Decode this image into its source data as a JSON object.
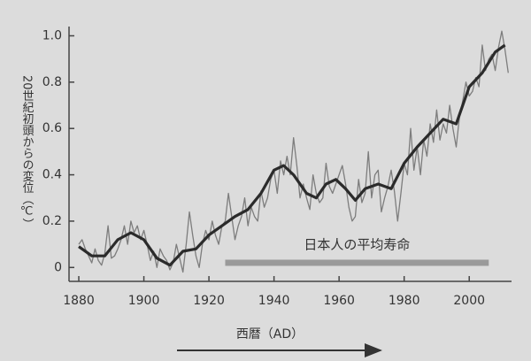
{
  "chart_data": {
    "type": "line",
    "ylabel": "20世紀初頭からの変位（℃）",
    "xlabel": "西暦（AD）",
    "xlim": [
      1877,
      2013
    ],
    "ylim": [
      -0.06,
      1.04
    ],
    "xticks": [
      1880,
      1900,
      1920,
      1940,
      1960,
      1980,
      2000
    ],
    "yticks": [
      0,
      0.2,
      0.4,
      0.6,
      0.8,
      {
        "value": 1,
        "label": "1.0"
      }
    ],
    "annotation": {
      "text": "日本人の平均寿命",
      "xrange": [
        1925,
        2006
      ],
      "y": 0.02,
      "color": "#9a9a9a"
    },
    "series": [
      {
        "color": "#7d7d7d",
        "width": 1.3,
        "x": [
          1880,
          1881,
          1882,
          1883,
          1884,
          1885,
          1886,
          1887,
          1888,
          1889,
          1890,
          1891,
          1892,
          1893,
          1894,
          1895,
          1896,
          1897,
          1898,
          1899,
          1900,
          1901,
          1902,
          1903,
          1904,
          1905,
          1906,
          1907,
          1908,
          1909,
          1910,
          1911,
          1912,
          1913,
          1914,
          1915,
          1916,
          1917,
          1918,
          1919,
          1920,
          1921,
          1922,
          1923,
          1924,
          1925,
          1926,
          1927,
          1928,
          1929,
          1930,
          1931,
          1932,
          1933,
          1934,
          1935,
          1936,
          1937,
          1938,
          1939,
          1940,
          1941,
          1942,
          1943,
          1944,
          1945,
          1946,
          1947,
          1948,
          1949,
          1950,
          1951,
          1952,
          1953,
          1954,
          1955,
          1956,
          1957,
          1958,
          1959,
          1960,
          1961,
          1962,
          1963,
          1964,
          1965,
          1966,
          1967,
          1968,
          1969,
          1970,
          1971,
          1972,
          1973,
          1974,
          1975,
          1976,
          1977,
          1978,
          1979,
          1980,
          1981,
          1982,
          1983,
          1984,
          1985,
          1986,
          1987,
          1988,
          1989,
          1990,
          1991,
          1992,
          1993,
          1994,
          1995,
          1996,
          1997,
          1998,
          1999,
          2000,
          2001,
          2002,
          2003,
          2004,
          2005,
          2006,
          2007,
          2008,
          2009,
          2010,
          2011,
          2012
        ],
        "values": [
          0.1,
          0.12,
          0.08,
          0.05,
          0.02,
          0.08,
          0.03,
          0.01,
          0.06,
          0.18,
          0.04,
          0.05,
          0.08,
          0.12,
          0.18,
          0.1,
          0.2,
          0.15,
          0.18,
          0.12,
          0.16,
          0.1,
          0.03,
          0.07,
          0.0,
          0.08,
          0.05,
          0.03,
          -0.01,
          0.02,
          0.1,
          0.04,
          -0.02,
          0.1,
          0.24,
          0.14,
          0.05,
          0.0,
          0.1,
          0.16,
          0.12,
          0.2,
          0.14,
          0.1,
          0.18,
          0.2,
          0.32,
          0.22,
          0.12,
          0.18,
          0.22,
          0.3,
          0.18,
          0.26,
          0.22,
          0.2,
          0.33,
          0.26,
          0.3,
          0.38,
          0.42,
          0.32,
          0.46,
          0.4,
          0.48,
          0.4,
          0.56,
          0.44,
          0.3,
          0.36,
          0.3,
          0.25,
          0.4,
          0.32,
          0.28,
          0.3,
          0.45,
          0.35,
          0.32,
          0.36,
          0.4,
          0.44,
          0.36,
          0.26,
          0.2,
          0.22,
          0.38,
          0.28,
          0.32,
          0.5,
          0.3,
          0.4,
          0.42,
          0.24,
          0.3,
          0.35,
          0.42,
          0.33,
          0.2,
          0.32,
          0.45,
          0.4,
          0.6,
          0.42,
          0.52,
          0.4,
          0.55,
          0.48,
          0.62,
          0.54,
          0.68,
          0.55,
          0.62,
          0.58,
          0.7,
          0.6,
          0.52,
          0.65,
          0.72,
          0.8,
          0.74,
          0.76,
          0.82,
          0.78,
          0.96,
          0.85,
          0.9,
          0.92,
          0.85,
          0.95,
          1.02,
          0.94,
          0.84
        ]
      },
      {
        "color": "#2b2b2b",
        "width": 3.2,
        "x": [
          1880,
          1884,
          1888,
          1892,
          1896,
          1900,
          1904,
          1908,
          1912,
          1916,
          1920,
          1924,
          1928,
          1932,
          1936,
          1940,
          1943,
          1946,
          1950,
          1953,
          1956,
          1959,
          1962,
          1965,
          1968,
          1972,
          1976,
          1980,
          1984,
          1988,
          1992,
          1996,
          2000,
          2004,
          2008,
          2011
        ],
        "values": [
          0.09,
          0.05,
          0.05,
          0.12,
          0.15,
          0.12,
          0.04,
          0.01,
          0.07,
          0.08,
          0.14,
          0.18,
          0.22,
          0.25,
          0.32,
          0.42,
          0.44,
          0.4,
          0.32,
          0.3,
          0.36,
          0.38,
          0.34,
          0.29,
          0.34,
          0.36,
          0.34,
          0.45,
          0.52,
          0.58,
          0.64,
          0.62,
          0.78,
          0.84,
          0.93,
          0.96
        ]
      }
    ]
  }
}
